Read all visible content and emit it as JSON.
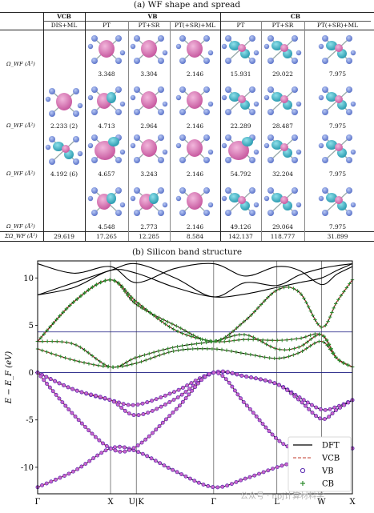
{
  "panel_a": {
    "caption": "(a) WF shape and spread",
    "groups": [
      "VCB",
      "VB",
      "CB"
    ],
    "subheaders": [
      "DIS+ML",
      "PT",
      "PT+SR",
      "PT(+SR)+ML",
      "PT",
      "PT+SR",
      "PT(+SR)+ML"
    ],
    "row_labels": [
      "Ω_WF (Å²)",
      "Ω_WF (Å²)",
      "Ω_WF (Å²)",
      "Ω_WF (Å²)",
      "ΣΩ_WF (Å²)"
    ],
    "rows": [
      [
        "",
        "3.348",
        "3.304",
        "2.146",
        "15.931",
        "29.022",
        "7.975"
      ],
      [
        "2.233 (2)",
        "4.713",
        "2.964",
        "2.146",
        "22.289",
        "28.487",
        "7.975"
      ],
      [
        "4.192 (6)",
        "4.657",
        "3.243",
        "2.146",
        "54.792",
        "32.204",
        "7.975"
      ],
      [
        "",
        "4.548",
        "2.773",
        "2.146",
        "49.126",
        "29.064",
        "7.975"
      ]
    ],
    "totals": [
      "29.619",
      "17.265",
      "12.285",
      "8.584",
      "142.137",
      "118.777",
      "31.899"
    ]
  },
  "panel_b": {
    "caption": "(b) Silicon band structure",
    "chart_data": {
      "type": "line",
      "ylabel": "E − E_F (eV)",
      "ylim": [
        -12.8,
        11.8
      ],
      "yticks": [
        10,
        5,
        0,
        -5,
        -10
      ],
      "kpoints": [
        "Γ",
        "X",
        "U|K",
        "Γ",
        "L",
        "W",
        "X"
      ],
      "kpoint_positions": [
        0,
        0.2316,
        0.3136,
        0.5593,
        0.76,
        0.9019,
        1.0
      ],
      "hlines": [
        0,
        4.3
      ],
      "legend": {
        "placement": "bottom-right",
        "entries": [
          "DFT",
          "VCB",
          "VB",
          "CB"
        ]
      },
      "colors": {
        "DFT": "#000000",
        "VCB": "#c0392b",
        "VB": "#5a2bb0",
        "CB": "#2e8b2e",
        "markers_vb": "#cc66cc"
      },
      "series": [
        {
          "name": "VB",
          "x": [
            0,
            0.1158,
            0.2316,
            0.3136,
            0.4365,
            0.5593,
            0.6597,
            0.76,
            0.831,
            0.9019,
            0.951,
            1.0
          ],
          "y": [
            -12.1,
            -10.4,
            -8.0,
            -8.3,
            -10.4,
            -12.1,
            -11.2,
            -10.0,
            -9.3,
            -8.5,
            -8.3,
            -8.0
          ]
        },
        {
          "name": "VB",
          "x": [
            0,
            0.1158,
            0.2316,
            0.3136,
            0.4365,
            0.5593,
            0.6597,
            0.76,
            0.831,
            0.9019,
            0.951,
            1.0
          ],
          "y": [
            0,
            -1.8,
            -2.9,
            -3.4,
            -2.0,
            0,
            -0.4,
            -1.2,
            -2.6,
            -3.9,
            -3.6,
            -2.9
          ]
        },
        {
          "name": "VB",
          "x": [
            0,
            0.1158,
            0.2316,
            0.3136,
            0.4365,
            0.5593,
            0.6597,
            0.76,
            0.831,
            0.9019,
            0.951,
            1.0
          ],
          "y": [
            0,
            -1.8,
            -2.9,
            -4.5,
            -2.8,
            0,
            -0.4,
            -1.2,
            -2.9,
            -4.9,
            -3.9,
            -2.9
          ]
        },
        {
          "name": "VB",
          "x": [
            0,
            0.1158,
            0.2316,
            0.3136,
            0.4365,
            0.5593,
            0.6597,
            0.76,
            0.831,
            0.9019,
            0.951,
            1.0
          ],
          "y": [
            0,
            -4.5,
            -8.0,
            -7.8,
            -4.0,
            0,
            -3.3,
            -7.0,
            -8.3,
            -8.8,
            -8.5,
            -8.0
          ]
        },
        {
          "name": "CB",
          "x": [
            0,
            0.1158,
            0.2316,
            0.3136,
            0.4365,
            0.5593,
            0.6597,
            0.76,
            0.831,
            0.9019,
            0.951,
            1.0
          ],
          "y": [
            2.5,
            1.3,
            0.6,
            1.0,
            2.3,
            2.5,
            2.0,
            1.5,
            2.1,
            3.3,
            1.5,
            0.6
          ]
        },
        {
          "name": "CB",
          "x": [
            0,
            0.1158,
            0.2316,
            0.3136,
            0.4365,
            0.5593,
            0.6597,
            0.76,
            0.831,
            0.9019,
            0.951,
            1.0
          ],
          "y": [
            3.3,
            7.5,
            9.8,
            7.5,
            4.5,
            3.3,
            3.5,
            3.4,
            3.6,
            4.0,
            1.5,
            0.6
          ]
        },
        {
          "name": "CB",
          "x": [
            0,
            0.1158,
            0.2316,
            0.3136,
            0.4365,
            0.5593,
            0.6597,
            0.76,
            0.831,
            0.9019,
            0.951,
            1.0
          ],
          "y": [
            3.3,
            7.5,
            9.8,
            7.2,
            5.0,
            3.3,
            5.5,
            8.7,
            8.5,
            4.8,
            7.5,
            9.8
          ]
        },
        {
          "name": "CB",
          "x": [
            0,
            0.1158,
            0.2316,
            0.3136,
            0.4365,
            0.5593,
            0.6597,
            0.76,
            0.831,
            0.9019,
            0.951,
            1.0
          ],
          "y": [
            3.3,
            3.0,
            0.6,
            1.6,
            2.7,
            3.3,
            4.0,
            2.5,
            2.7,
            4.0,
            1.5,
            0.6
          ]
        },
        {
          "name": "DFT",
          "x": [
            0,
            0.1158,
            0.2316,
            0.3136,
            0.4365,
            0.5593,
            0.6597,
            0.76,
            0.831,
            0.9019,
            0.951,
            1.0
          ],
          "y": [
            8.2,
            9.0,
            10.8,
            10.5,
            9.0,
            8.0,
            8.3,
            9.0,
            9.5,
            10.0,
            10.8,
            11.5
          ]
        },
        {
          "name": "DFT",
          "x": [
            0,
            0.1158,
            0.2316,
            0.3136,
            0.4365,
            0.5593,
            0.6597,
            0.76,
            0.831,
            0.9019,
            0.951,
            1.0
          ],
          "y": [
            8.2,
            9.5,
            10.8,
            11.5,
            10.0,
            8.0,
            9.5,
            9.2,
            10.3,
            11.0,
            11.3,
            11.5
          ]
        },
        {
          "name": "DFT",
          "x": [
            0,
            0.1158,
            0.2316,
            0.3136,
            0.4365,
            0.5593,
            0.6597,
            0.76,
            0.831,
            0.9019,
            0.951,
            1.0
          ],
          "y": [
            11.5,
            10.5,
            11.2,
            9.5,
            11.0,
            11.5,
            10.2,
            11.2,
            10.8,
            9.3,
            10.4,
            11.2
          ]
        }
      ]
    }
  },
  "watermark": "公众号 · npj计算材料学"
}
